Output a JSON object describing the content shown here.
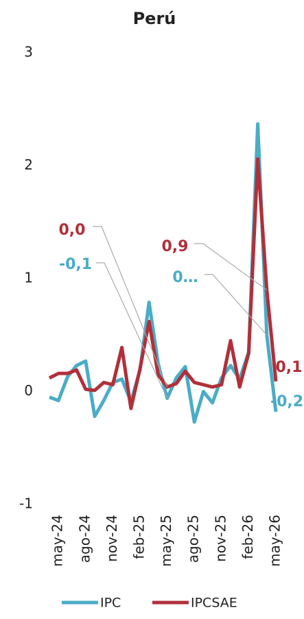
{
  "chart_data": {
    "type": "line",
    "title": "Perú",
    "categories": [
      null,
      "may-24",
      null,
      null,
      "ago-24",
      null,
      null,
      "nov-24",
      null,
      null,
      "feb-25",
      null,
      null,
      "may-25",
      null,
      null,
      "ago-25",
      null,
      null,
      "nov-25",
      null,
      null,
      "feb-26",
      null,
      null,
      "may-26"
    ],
    "series": [
      {
        "name": "IPC",
        "color": "#4bacc6",
        "values": [
          -0.05,
          -0.08,
          0.13,
          0.23,
          0.27,
          -0.22,
          -0.08,
          0.08,
          0.11,
          -0.09,
          0.19,
          0.79,
          0.25,
          -0.06,
          0.12,
          0.22,
          -0.27,
          0.0,
          -0.1,
          0.12,
          0.23,
          0.11,
          0.35,
          2.37,
          0.5,
          -0.18
        ],
        "value_labels": [
          null,
          null,
          null,
          null,
          null,
          null,
          null,
          null,
          null,
          null,
          null,
          null,
          null,
          "-0,1",
          null,
          null,
          null,
          null,
          null,
          null,
          null,
          null,
          null,
          null,
          "0…",
          "-0,2"
        ]
      },
      {
        "name": "IPCSAE",
        "color": "#b0303a",
        "values": [
          0.12,
          0.16,
          0.16,
          0.19,
          0.02,
          0.01,
          0.08,
          0.06,
          0.39,
          -0.15,
          0.2,
          0.62,
          0.15,
          0.04,
          0.07,
          0.18,
          0.08,
          0.06,
          0.04,
          0.06,
          0.45,
          0.04,
          0.34,
          2.06,
          0.9,
          0.09
        ],
        "value_labels": [
          null,
          null,
          null,
          null,
          null,
          null,
          null,
          null,
          null,
          null,
          null,
          null,
          null,
          "0,0",
          null,
          null,
          null,
          null,
          null,
          null,
          null,
          null,
          null,
          null,
          "0,9",
          "0,1"
        ]
      }
    ],
    "ylim": [
      -1,
      3
    ],
    "yticks": [
      -1,
      0,
      1,
      2,
      3
    ],
    "grid": false
  }
}
